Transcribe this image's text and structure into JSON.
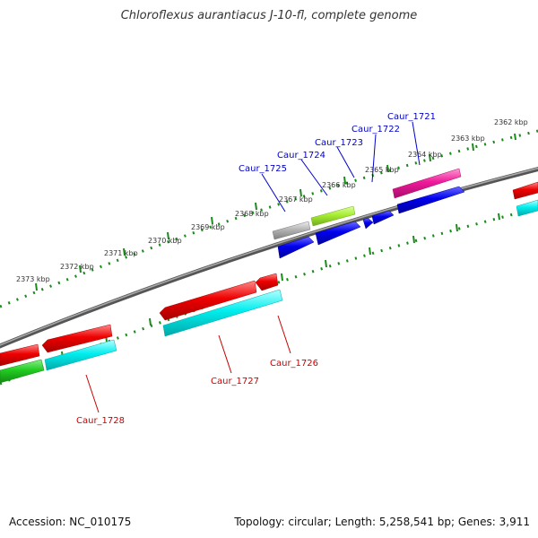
{
  "title": "Chloroflexus aurantiacus J-10-fl, complete genome",
  "footer": {
    "accession": "Accession: NC_010175",
    "topology": "Topology: circular; Length: 5,258,541 bp; Genes: 3,911"
  },
  "colors": {
    "backbone": "#777777",
    "ticks": "#1a8a1a",
    "tick_label": "#333333",
    "label_blue": "#0000cc",
    "label_red": "#cc0000",
    "red": "#ee0000",
    "cyan": "#00eeee",
    "blue": "#0000dd",
    "green": "#22cc22",
    "lime": "#a6ee33",
    "magenta": "#ee1a9a",
    "gray": "#aaaaaa"
  },
  "scale_labels": [
    "2362 kbp",
    "2363 kbp",
    "2364 kbp",
    "2365 kbp",
    "2366 kbp",
    "2367 kbp",
    "2368 kbp",
    "2369 kbp",
    "2370 kbp",
    "2371 kbp",
    "2372 kbp",
    "2373 kbp"
  ],
  "gene_labels": [
    "Caur_1721",
    "Caur_1722",
    "Caur_1723",
    "Caur_1724",
    "Caur_1725",
    "Caur_1726",
    "Caur_1727",
    "Caur_1728"
  ]
}
